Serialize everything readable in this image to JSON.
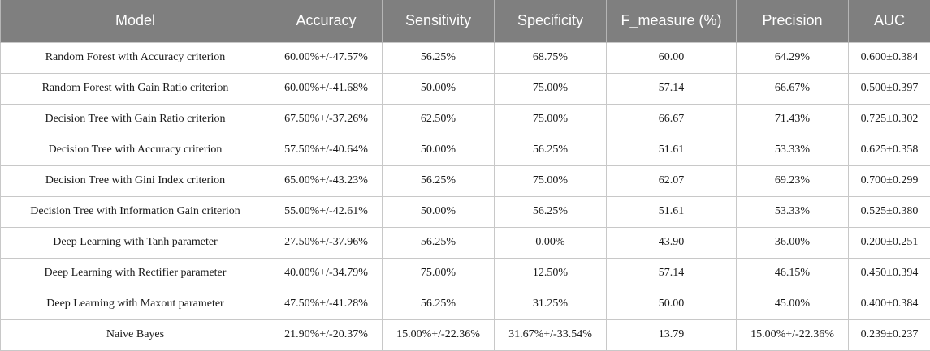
{
  "table": {
    "headers": [
      "Model",
      "Accuracy",
      "Sensitivity",
      "Specificity",
      "F_measure (%)",
      "Precision",
      "AUC"
    ],
    "rows": [
      [
        "Random Forest with Accuracy criterion",
        "60.00%+/-47.57%",
        "56.25%",
        "68.75%",
        "60.00",
        "64.29%",
        "0.600±0.384"
      ],
      [
        "Random Forest with Gain Ratio criterion",
        "60.00%+/-41.68%",
        "50.00%",
        "75.00%",
        "57.14",
        "66.67%",
        "0.500±0.397"
      ],
      [
        "Decision Tree with Gain Ratio criterion",
        "67.50%+/-37.26%",
        "62.50%",
        "75.00%",
        "66.67",
        "71.43%",
        "0.725±0.302"
      ],
      [
        "Decision Tree with Accuracy criterion",
        "57.50%+/-40.64%",
        "50.00%",
        "56.25%",
        "51.61",
        "53.33%",
        "0.625±0.358"
      ],
      [
        "Decision Tree with Gini Index criterion",
        "65.00%+/-43.23%",
        "56.25%",
        "75.00%",
        "62.07",
        "69.23%",
        "0.700±0.299"
      ],
      [
        "Decision Tree with Information Gain criterion",
        "55.00%+/-42.61%",
        "50.00%",
        "56.25%",
        "51.61",
        "53.33%",
        "0.525±0.380"
      ],
      [
        "Deep Learning with Tanh parameter",
        "27.50%+/-37.96%",
        "56.25%",
        "0.00%",
        "43.90",
        "36.00%",
        "0.200±0.251"
      ],
      [
        "Deep Learning with Rectifier parameter",
        "40.00%+/-34.79%",
        "75.00%",
        "12.50%",
        "57.14",
        "46.15%",
        "0.450±0.394"
      ],
      [
        "Deep Learning with Maxout parameter",
        "47.50%+/-41.28%",
        "56.25%",
        "31.25%",
        "50.00",
        "45.00%",
        "0.400±0.384"
      ],
      [
        "Naive Bayes",
        "21.90%+/-20.37%",
        "15.00%+/-22.36%",
        "31.67%+/-33.54%",
        "13.79",
        "15.00%+/-22.36%",
        "0.239±0.237"
      ]
    ]
  },
  "colors": {
    "header_bg": "#7f7f7f",
    "header_text": "#ffffff",
    "grid": "#c8c8c8"
  }
}
